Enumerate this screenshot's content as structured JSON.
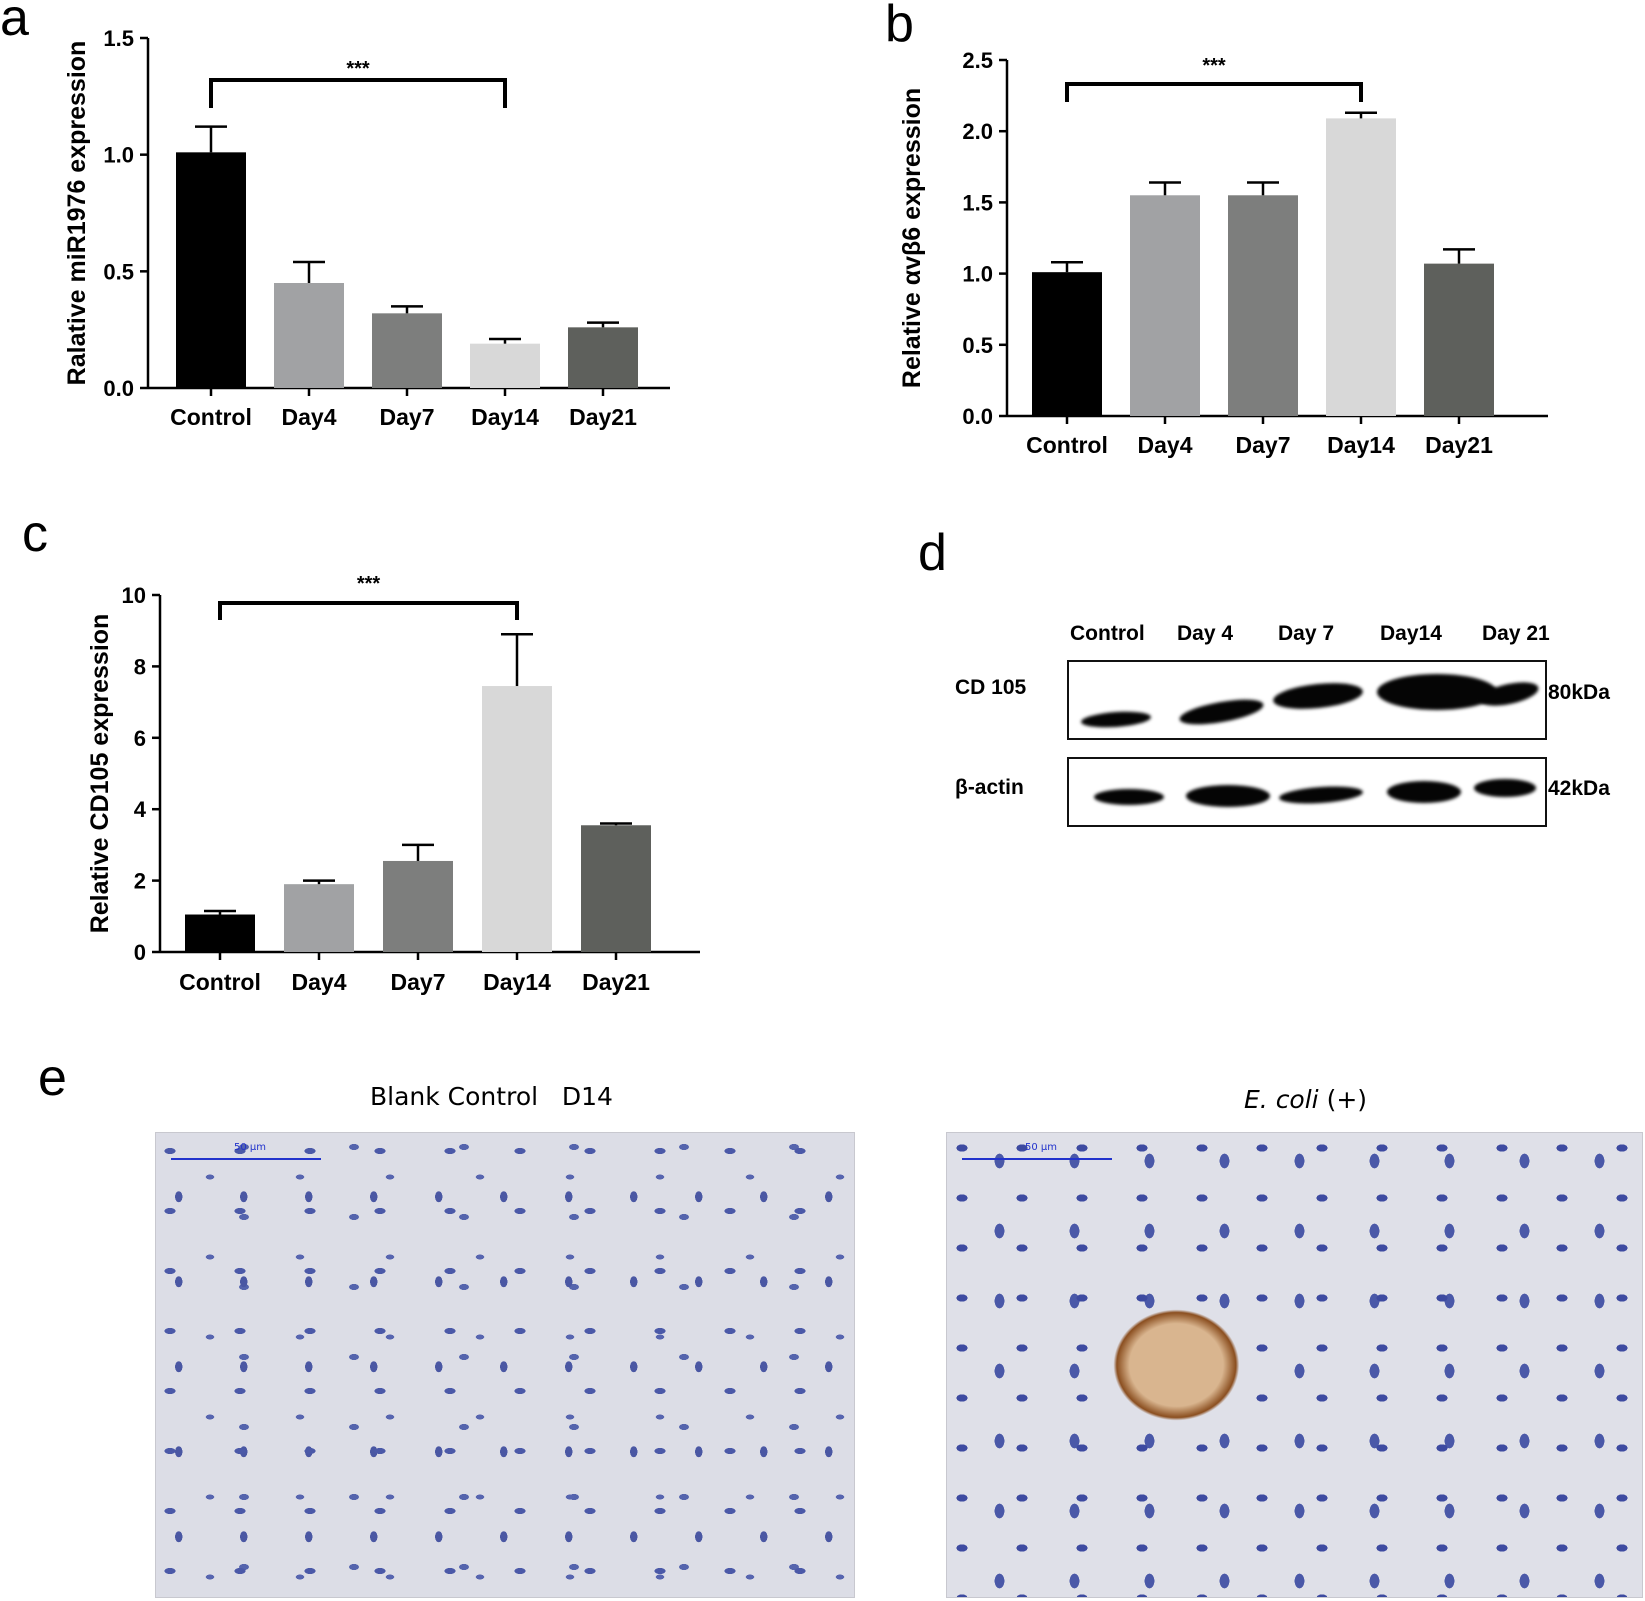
{
  "panel_labels": {
    "a": "a",
    "b": "b",
    "c": "c",
    "d": "d",
    "e": "e"
  },
  "colors": {
    "Control": "#000000",
    "Day4": "#a1a2a4",
    "Day7": "#7d7e7d",
    "Day14": "#d8d8d8",
    "Day21": "#5e605c"
  },
  "chart_data": [
    {
      "id": "a",
      "type": "bar",
      "categories": [
        "Control",
        "Day4",
        "Day7",
        "Day14",
        "Day21"
      ],
      "values": [
        1.01,
        0.45,
        0.32,
        0.19,
        0.26
      ],
      "errors": [
        0.11,
        0.09,
        0.03,
        0.02,
        0.02
      ],
      "ylabel": "Ralative miR1976 expression",
      "xlabel": "",
      "ylim": [
        0,
        1.5
      ],
      "yticks": [
        "0.0",
        "0.5",
        "1.0",
        "1.5"
      ],
      "significance": {
        "from": "Control",
        "to": "Day14",
        "label": "***"
      }
    },
    {
      "id": "b",
      "type": "bar",
      "categories": [
        "Control",
        "Day4",
        "Day7",
        "Day14",
        "Day21"
      ],
      "values": [
        1.01,
        1.55,
        1.55,
        2.09,
        1.07
      ],
      "errors": [
        0.07,
        0.09,
        0.09,
        0.04,
        0.1
      ],
      "ylabel": "Relative αvβ6 expression",
      "xlabel": "",
      "ylim": [
        0,
        2.5
      ],
      "yticks": [
        "0.0",
        "0.5",
        "1.0",
        "1.5",
        "2.0",
        "2.5"
      ],
      "significance": {
        "from": "Control",
        "to": "Day14",
        "label": "***"
      }
    },
    {
      "id": "c",
      "type": "bar",
      "categories": [
        "Control",
        "Day4",
        "Day7",
        "Day14",
        "Day21"
      ],
      "values": [
        1.05,
        1.9,
        2.55,
        7.45,
        3.55
      ],
      "errors": [
        0.1,
        0.1,
        0.45,
        1.45,
        0.05
      ],
      "ylabel": "Relative CD105 expression",
      "xlabel": "",
      "ylim": [
        0,
        10
      ],
      "yticks": [
        "0",
        "2",
        "4",
        "6",
        "8",
        "10"
      ],
      "significance": {
        "from": "Control",
        "to": "Day14",
        "label": "***"
      }
    }
  ],
  "western_blot": {
    "lanes": [
      "Control",
      "Day 4",
      "Day 7",
      "Day14",
      "Day 21"
    ],
    "rows": [
      {
        "protein": "CD 105",
        "size": "80kDa",
        "intensity": [
          0.55,
          0.7,
          0.75,
          1.0,
          0.7
        ]
      },
      {
        "protein": "β-actin",
        "size": "42kDa",
        "intensity": [
          0.75,
          0.85,
          0.75,
          0.8,
          0.75
        ]
      }
    ]
  },
  "micrographs": [
    {
      "caption": "Blank Control   D14",
      "scale": "50 μm"
    },
    {
      "caption_italic": "E. coli",
      "caption_rest": " (+)",
      "scale": "50 μm"
    }
  ]
}
